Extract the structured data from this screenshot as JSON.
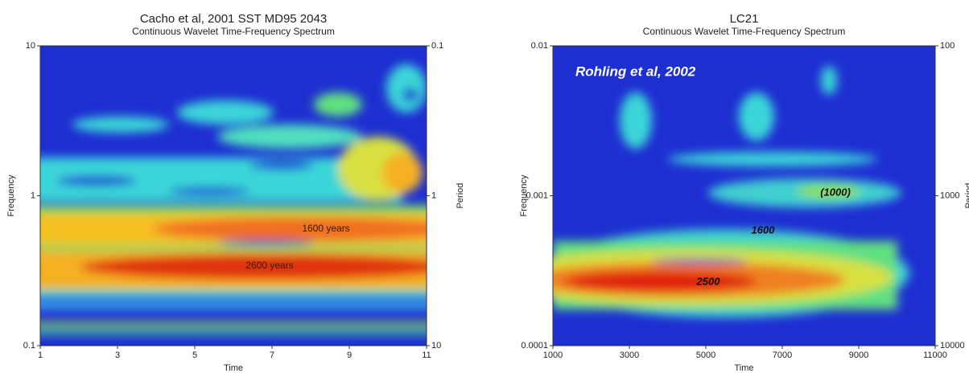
{
  "chart_data": [
    {
      "type": "heatmap",
      "title": "Cacho et al, 2001 SST MD95 2043",
      "subtitle": "Continuous Wavelet Time-Frequency Spectrum",
      "x_label": "Time",
      "y_label": "Frequency",
      "y2_label": "Period",
      "xlim": [
        1,
        11
      ],
      "xticks": [
        1,
        3,
        5,
        7,
        9,
        11
      ],
      "ylim": [
        0.1,
        10
      ],
      "yticks": [
        0.1,
        1,
        10
      ],
      "ylog": true,
      "y2lim": [
        10,
        0.1
      ],
      "y2ticks": [
        10,
        1,
        0.1
      ],
      "y2log": true,
      "annotations": [
        "1600 years",
        "2600 years"
      ]
    },
    {
      "type": "heatmap",
      "title": "LC21",
      "subtitle": "Continuous Wavelet Time-Frequency Spectrum",
      "x_label": "Time",
      "y_label": "Frequency",
      "y2_label": "Period",
      "xlim": [
        1000,
        11000
      ],
      "xticks": [
        1000,
        3000,
        5000,
        7000,
        9000,
        11000
      ],
      "ylim": [
        0.0001,
        0.01
      ],
      "yticks": [
        0.0001,
        0.001,
        0.01
      ],
      "ylog": true,
      "y2lim": [
        10000,
        100
      ],
      "y2ticks": [
        10000,
        1000,
        100
      ],
      "y2log": true,
      "annotations": [
        "Rohling et al, 2002",
        "(1000)",
        "1600",
        "2500"
      ]
    }
  ]
}
